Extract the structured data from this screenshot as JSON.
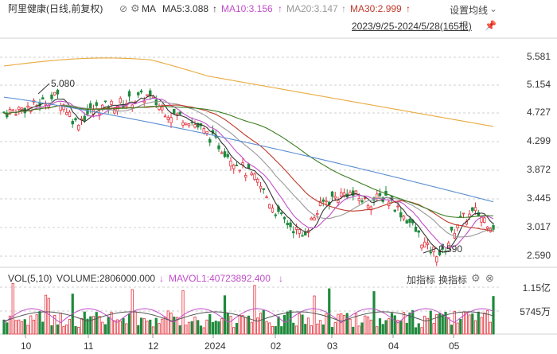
{
  "header": {
    "title": "阿里健康(日线,前复权)",
    "ma_label": "MA",
    "ma5": "MA5:3.088",
    "ma10": "MA10:3.156",
    "ma20": "MA20:3.147",
    "ma30": "MA30:2.999",
    "settings_label": "设置均线",
    "range": "2023/9/25-2024/5/28(165根)",
    "icons": [
      "eye-off-icon",
      "gear-icon",
      "chevron-down-icon",
      "pin-icon"
    ]
  },
  "price_axis": [
    "5.581",
    "5.154",
    "4.727",
    "4.299",
    "3.872",
    "3.445",
    "3.017",
    "2.590"
  ],
  "annotations": {
    "high": "5.080",
    "low": "2.590"
  },
  "volume": {
    "label": "VOL(5,10)",
    "volume_text": "VOLUME:2806000.000",
    "mavol_text": "MAVOL1:40723892.400",
    "axis": [
      "1.15亿",
      "5745万"
    ],
    "buttons": [
      "加指标",
      "换指标"
    ]
  },
  "x_axis": [
    "10",
    "11",
    "12",
    "2024",
    "02",
    "03",
    "04",
    "05"
  ],
  "colors": {
    "up": "#e5323c",
    "down": "#1f8a3c",
    "ma5": "#333333",
    "ma10": "#c14fc9",
    "ma20": "#999999",
    "ma30": "#c0392b",
    "ma60": "#3a7d1f",
    "ma120": "#5b8fd1",
    "ma250": "#e8a93c"
  }
}
